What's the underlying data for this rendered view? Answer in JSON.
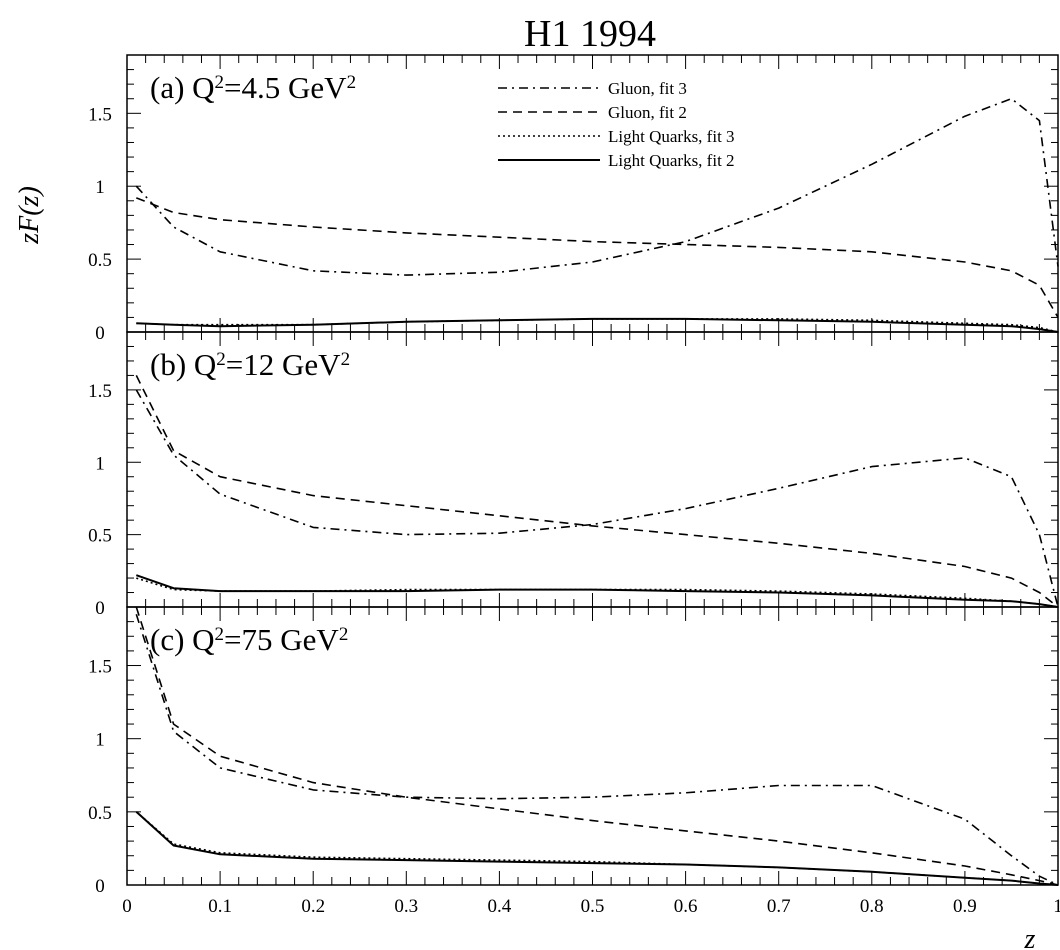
{
  "chart_data": {
    "type": "line",
    "title": "H1 1994",
    "xlabel": "z",
    "ylabel": "zF(z)",
    "xlim": [
      0,
      1
    ],
    "ylim": [
      0,
      1.9
    ],
    "x_ticks": [
      "0",
      "0.1",
      "0.2",
      "0.3",
      "0.4",
      "0.5",
      "0.6",
      "0.7",
      "0.8",
      "0.9",
      "1"
    ],
    "y_ticks": [
      "0",
      "0.5",
      "1",
      "1.5"
    ],
    "grid": false,
    "legend": {
      "placement": "top-right (panel a)",
      "entries": [
        {
          "label": "Gluon, fit 3",
          "style": "dash-dot"
        },
        {
          "label": "Gluon, fit 2",
          "style": "dashed"
        },
        {
          "label": "Light Quarks, fit 3",
          "style": "dotted"
        },
        {
          "label": "Light Quarks, fit 2",
          "style": "solid"
        }
      ]
    },
    "x": [
      0.01,
      0.05,
      0.1,
      0.2,
      0.3,
      0.4,
      0.5,
      0.6,
      0.7,
      0.8,
      0.9,
      0.95,
      0.98,
      1.0
    ],
    "panels": [
      {
        "label": "(a)",
        "q2_label": "Q",
        "q2_exp": "2",
        "q2_value": "=4.5 GeV",
        "q2_unit_exp": "2",
        "series": [
          {
            "name": "Gluon, fit 3",
            "style": "dash-dot",
            "values": [
              1.0,
              0.72,
              0.55,
              0.42,
              0.39,
              0.41,
              0.48,
              0.62,
              0.85,
              1.15,
              1.48,
              1.6,
              1.45,
              0.45
            ]
          },
          {
            "name": "Gluon, fit 2",
            "style": "dashed",
            "values": [
              0.92,
              0.82,
              0.77,
              0.72,
              0.68,
              0.65,
              0.62,
              0.6,
              0.58,
              0.55,
              0.48,
              0.42,
              0.32,
              0.1
            ]
          },
          {
            "name": "Light Quarks, fit 3",
            "style": "dotted",
            "values": [
              0.06,
              0.05,
              0.05,
              0.05,
              0.07,
              0.08,
              0.09,
              0.09,
              0.09,
              0.08,
              0.06,
              0.05,
              0.03,
              0.0
            ]
          },
          {
            "name": "Light Quarks, fit 2",
            "style": "solid",
            "values": [
              0.06,
              0.05,
              0.04,
              0.05,
              0.07,
              0.08,
              0.09,
              0.09,
              0.08,
              0.07,
              0.05,
              0.04,
              0.02,
              0.0
            ]
          }
        ]
      },
      {
        "label": "(b)",
        "q2_label": "Q",
        "q2_exp": "2",
        "q2_value": "=12 GeV",
        "q2_unit_exp": "2",
        "series": [
          {
            "name": "Gluon, fit 3",
            "style": "dash-dot",
            "values": [
              1.5,
              1.05,
              0.78,
              0.55,
              0.5,
              0.51,
              0.57,
              0.68,
              0.82,
              0.97,
              1.03,
              0.9,
              0.5,
              0.0
            ]
          },
          {
            "name": "Gluon, fit 2",
            "style": "dashed",
            "values": [
              1.6,
              1.08,
              0.9,
              0.77,
              0.7,
              0.63,
              0.56,
              0.5,
              0.44,
              0.37,
              0.28,
              0.2,
              0.1,
              0.0
            ]
          },
          {
            "name": "Light Quarks, fit 3",
            "style": "dotted",
            "values": [
              0.2,
              0.12,
              0.11,
              0.11,
              0.12,
              0.12,
              0.12,
              0.12,
              0.11,
              0.09,
              0.06,
              0.04,
              0.02,
              0.0
            ]
          },
          {
            "name": "Light Quarks, fit 2",
            "style": "solid",
            "values": [
              0.22,
              0.13,
              0.11,
              0.11,
              0.11,
              0.12,
              0.12,
              0.11,
              0.1,
              0.08,
              0.05,
              0.04,
              0.02,
              0.0
            ]
          }
        ]
      },
      {
        "label": "(c)",
        "q2_label": "Q",
        "q2_exp": "2",
        "q2_value": "=75 GeV",
        "q2_unit_exp": "2",
        "series": [
          {
            "name": "Gluon, fit 3",
            "style": "dash-dot",
            "values": [
              1.85,
              1.05,
              0.8,
              0.65,
              0.6,
              0.59,
              0.6,
              0.63,
              0.68,
              0.68,
              0.45,
              0.2,
              0.06,
              0.0
            ]
          },
          {
            "name": "Gluon, fit 2",
            "style": "dashed",
            "values": [
              1.9,
              1.1,
              0.88,
              0.7,
              0.6,
              0.52,
              0.44,
              0.37,
              0.3,
              0.22,
              0.13,
              0.07,
              0.03,
              0.0
            ]
          },
          {
            "name": "Light Quarks, fit 3",
            "style": "dotted",
            "values": [
              0.5,
              0.28,
              0.22,
              0.19,
              0.18,
              0.17,
              0.16,
              0.14,
              0.12,
              0.09,
              0.05,
              0.03,
              0.01,
              0.0
            ]
          },
          {
            "name": "Light Quarks, fit 2",
            "style": "solid",
            "values": [
              0.5,
              0.27,
              0.21,
              0.18,
              0.17,
              0.16,
              0.15,
              0.14,
              0.12,
              0.09,
              0.05,
              0.03,
              0.01,
              0.0
            ]
          }
        ]
      }
    ]
  }
}
